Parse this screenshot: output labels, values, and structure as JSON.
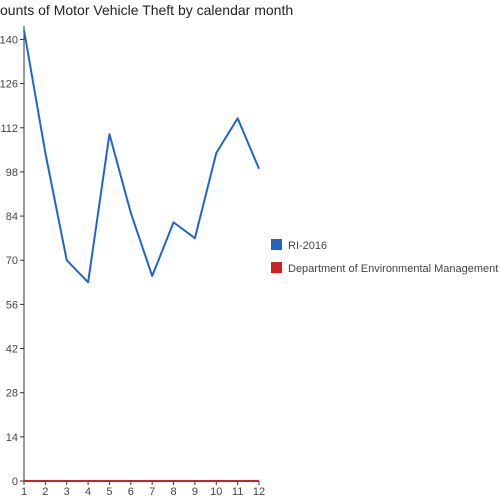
{
  "chart_data": {
    "type": "line",
    "title": "ounts of Motor Vehicle Theft by calendar month",
    "x": [
      "1",
      "2",
      "3",
      "4",
      "5",
      "6",
      "7",
      "8",
      "9",
      "10",
      "11",
      "12"
    ],
    "yticks": [
      "0",
      "14",
      "28",
      "42",
      "56",
      "70",
      "84",
      "98",
      "112",
      "126",
      "140"
    ],
    "ylim": [
      0,
      143
    ],
    "grid": false,
    "legend_position": "right",
    "series": [
      {
        "name": "RI-2016",
        "color": "#2166c4",
        "values": [
          143,
          104,
          70,
          63,
          110,
          85,
          65,
          82,
          77,
          104,
          115,
          99
        ]
      },
      {
        "name": "Department of Environmental Management",
        "color": "#cc2222",
        "values": [
          0,
          0,
          0,
          0,
          0,
          0,
          0,
          0,
          0,
          0,
          0,
          0
        ]
      }
    ]
  }
}
